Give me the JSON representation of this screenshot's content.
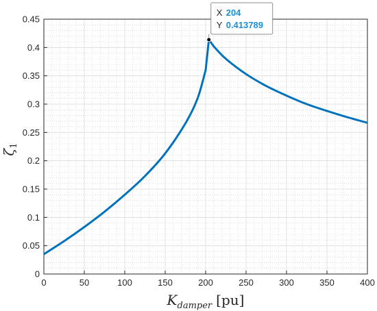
{
  "chart_data": {
    "type": "line",
    "title": "",
    "xlabel": "K",
    "xlabel_sub": "damper",
    "xlabel_unit": "[pu]",
    "ylabel": "ζ",
    "ylabel_sub": "1",
    "xlim": [
      0,
      400
    ],
    "ylim": [
      0,
      0.45
    ],
    "xticks": [
      0,
      50,
      100,
      150,
      200,
      250,
      300,
      350,
      400
    ],
    "yticks": [
      0,
      0.05,
      0.1,
      0.15,
      0.2,
      0.25,
      0.3,
      0.35,
      0.4,
      0.45
    ],
    "xtick_labels": [
      "0",
      "50",
      "100",
      "150",
      "200",
      "250",
      "300",
      "350",
      "400"
    ],
    "ytick_labels": [
      "0",
      "0.05",
      "0.1",
      "0.15",
      "0.2",
      "0.25",
      "0.3",
      "0.35",
      "0.4",
      "0.45"
    ],
    "grid": true,
    "minor_grid": true,
    "line_color": "#0072bd",
    "series": [
      {
        "x": [
          0,
          25,
          50,
          75,
          100,
          125,
          150,
          175,
          190,
          200,
          204,
          210,
          225,
          250,
          275,
          300,
          325,
          350,
          375,
          400
        ],
        "y": [
          0.035,
          0.058,
          0.083,
          0.11,
          0.14,
          0.173,
          0.213,
          0.266,
          0.31,
          0.36,
          0.413789,
          0.402,
          0.38,
          0.353,
          0.332,
          0.315,
          0.3,
          0.288,
          0.277,
          0.267
        ]
      }
    ],
    "datatip": {
      "x": 204,
      "y": 0.413789,
      "x_label": "X",
      "y_label": "Y",
      "x_text": "204",
      "y_text": "0.413789"
    }
  }
}
